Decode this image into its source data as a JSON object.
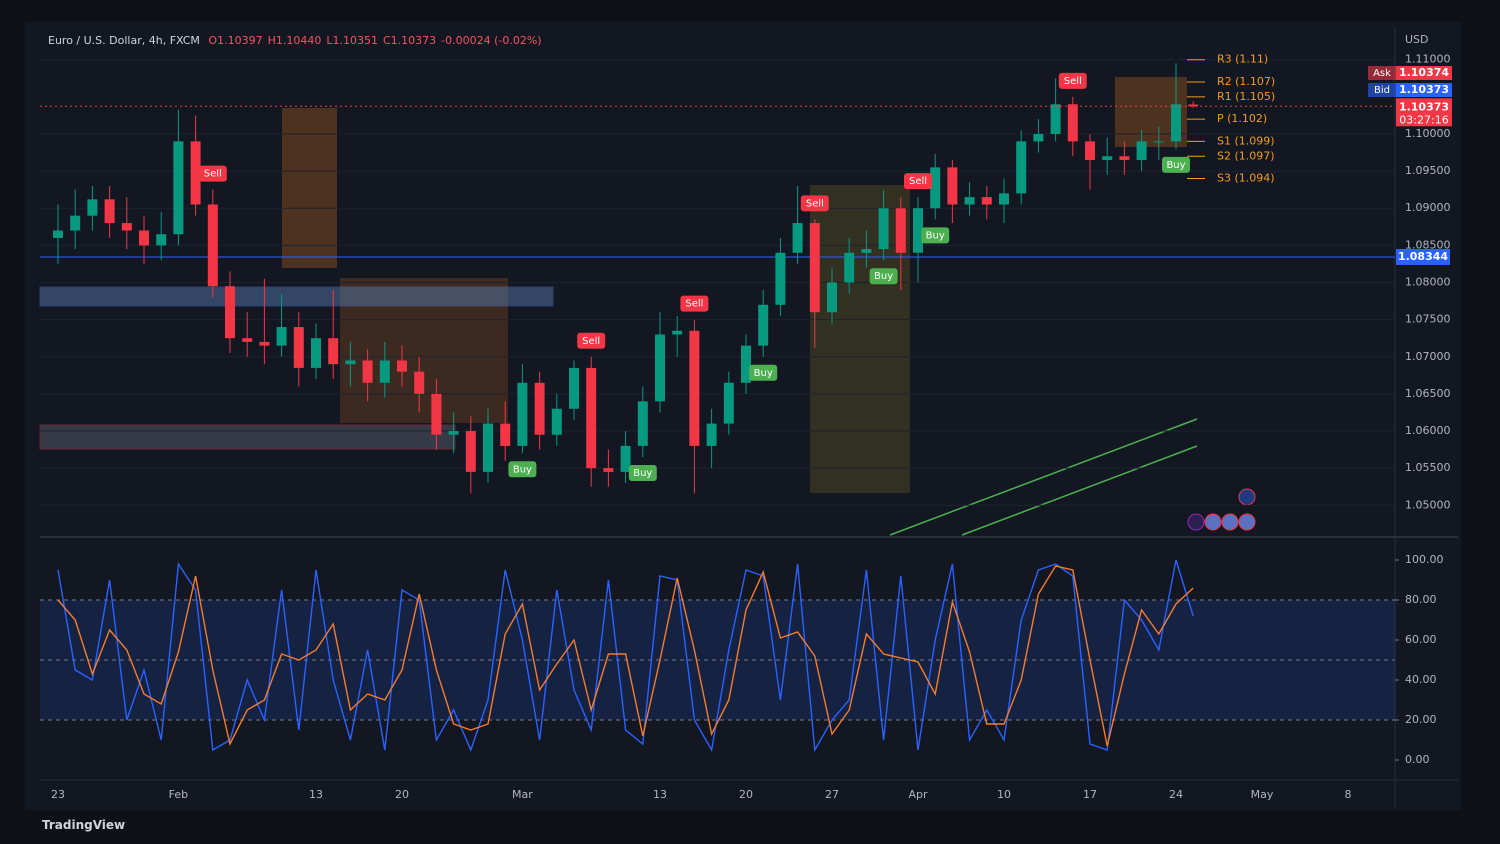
{
  "chart_data": [
    {
      "type": "candlestick",
      "title": "Euro / U.S. Dollar, 4h, FXCM",
      "readouts": [
        "O1.10397",
        "H1.10440",
        "L1.10351",
        "C1.10373",
        "-0.00024 (-0.02%)"
      ],
      "readout_color": "#f7525f",
      "currency": "USD",
      "categories": [
        "23",
        null,
        null,
        null,
        null,
        null,
        null,
        "Feb",
        null,
        null,
        null,
        null,
        null,
        null,
        null,
        "13",
        null,
        null,
        null,
        null,
        "20",
        null,
        null,
        null,
        null,
        null,
        null,
        "Mar",
        null,
        null,
        null,
        null,
        null,
        null,
        null,
        "13",
        null,
        null,
        null,
        null,
        "20",
        null,
        null,
        null,
        null,
        "27",
        null,
        null,
        null,
        null,
        "Apr",
        null,
        null,
        null,
        null,
        "10",
        null,
        null,
        null,
        null,
        "17",
        null,
        null,
        null,
        null,
        "24",
        null,
        null,
        null,
        null,
        "May",
        null,
        null,
        null,
        null,
        "8",
        null,
        null
      ],
      "open": [
        1.086,
        1.087,
        1.089,
        1.0912,
        1.088,
        1.087,
        1.085,
        1.0865,
        1.099,
        1.0905,
        1.0795,
        1.0725,
        1.072,
        1.0715,
        1.074,
        1.0685,
        1.0725,
        1.069,
        1.0695,
        1.0665,
        1.0695,
        1.068,
        1.065,
        1.0595,
        1.06,
        1.0545,
        1.061,
        1.058,
        1.0665,
        1.0595,
        1.063,
        1.0685,
        1.055,
        1.0545,
        1.058,
        1.064,
        1.073,
        1.0735,
        1.058,
        1.061,
        1.0665,
        1.0715,
        1.077,
        1.084,
        1.088,
        1.076,
        1.08,
        1.084,
        1.0845,
        1.09,
        1.084,
        1.09,
        1.0955,
        1.0905,
        1.0915,
        1.0905,
        1.092,
        1.099,
        1.1,
        1.104,
        1.099,
        1.0965,
        1.097,
        1.0965,
        1.099,
        1.099,
        1.10397,
        null,
        null,
        null,
        null,
        null,
        null,
        null,
        null,
        null,
        null,
        null
      ],
      "high": [
        1.0905,
        1.0925,
        1.093,
        1.093,
        1.0915,
        1.089,
        1.0895,
        1.1033,
        1.1025,
        1.0925,
        1.0815,
        1.076,
        1.0805,
        1.0785,
        1.076,
        1.0745,
        1.079,
        1.072,
        1.071,
        1.072,
        1.0715,
        1.07,
        1.067,
        1.0625,
        1.062,
        1.063,
        1.064,
        1.069,
        1.068,
        1.065,
        1.0695,
        1.07,
        1.0575,
        1.06,
        1.066,
        1.076,
        1.0755,
        1.075,
        1.063,
        1.068,
        1.073,
        1.079,
        1.086,
        1.093,
        1.0885,
        1.082,
        1.086,
        1.087,
        1.0925,
        1.0915,
        1.0915,
        1.0973,
        1.0965,
        1.0935,
        1.093,
        1.094,
        1.1005,
        1.102,
        1.1075,
        1.105,
        1.1,
        1.0995,
        1.099,
        1.1005,
        1.101,
        1.1095,
        1.1044,
        null,
        null,
        null,
        null,
        null,
        null,
        null,
        null,
        null,
        null,
        null
      ],
      "low": [
        1.0825,
        1.0845,
        1.087,
        1.086,
        1.0845,
        1.0825,
        1.083,
        1.085,
        1.089,
        1.078,
        1.0705,
        1.07,
        1.069,
        1.07,
        1.066,
        1.067,
        1.067,
        1.066,
        1.064,
        1.0645,
        1.066,
        1.0625,
        1.0575,
        1.057,
        1.0516,
        1.053,
        1.056,
        1.057,
        1.0575,
        1.058,
        1.0615,
        1.0525,
        1.0525,
        1.053,
        1.0565,
        1.0625,
        1.07,
        1.0516,
        1.055,
        1.0595,
        1.065,
        1.07,
        1.0755,
        1.0825,
        1.0712,
        1.0745,
        1.0785,
        1.082,
        1.083,
        1.079,
        1.08,
        1.0885,
        1.088,
        1.089,
        1.0885,
        1.088,
        1.0905,
        1.0975,
        1.099,
        1.097,
        1.0925,
        1.0945,
        1.0945,
        1.095,
        1.0965,
        1.098,
        1.10351,
        null,
        null,
        null,
        null,
        null,
        null,
        null,
        null,
        null,
        null,
        null
      ],
      "close": [
        1.087,
        1.089,
        1.0912,
        1.088,
        1.087,
        1.085,
        1.0865,
        1.099,
        1.0905,
        1.0795,
        1.0725,
        1.072,
        1.0715,
        1.074,
        1.0685,
        1.0725,
        1.069,
        1.0695,
        1.0665,
        1.0695,
        1.068,
        1.065,
        1.0595,
        1.06,
        1.0545,
        1.061,
        1.058,
        1.0665,
        1.0595,
        1.063,
        1.0685,
        1.055,
        1.0545,
        1.058,
        1.064,
        1.073,
        1.0735,
        1.058,
        1.061,
        1.0665,
        1.0715,
        1.077,
        1.084,
        1.088,
        1.076,
        1.08,
        1.084,
        1.0845,
        1.09,
        1.084,
        1.09,
        1.0955,
        1.0905,
        1.0915,
        1.0905,
        1.092,
        1.099,
        1.1,
        1.104,
        1.099,
        1.0965,
        1.097,
        1.0965,
        1.099,
        1.099,
        1.104,
        1.10373,
        null,
        null,
        null,
        null,
        null,
        null,
        null,
        null,
        null,
        null,
        null
      ],
      "up_color": "#089981",
      "down_color": "#f23645",
      "signals": [
        null,
        null,
        null,
        null,
        null,
        null,
        null,
        null,
        null,
        "Sell",
        null,
        null,
        null,
        null,
        null,
        null,
        null,
        null,
        null,
        null,
        null,
        null,
        null,
        null,
        null,
        null,
        null,
        "Buy",
        null,
        null,
        null,
        "Sell",
        null,
        null,
        "Buy",
        null,
        null,
        "Sell",
        null,
        null,
        null,
        "Buy",
        null,
        null,
        "Sell",
        null,
        null,
        null,
        "Buy",
        null,
        "Sell",
        "Buy",
        null,
        null,
        null,
        null,
        null,
        null,
        null,
        "Sell",
        null,
        null,
        null,
        null,
        null,
        "Buy",
        null,
        null,
        null,
        null,
        null,
        null,
        null,
        null,
        null,
        null,
        null,
        null
      ],
      "signal_styles": {
        "Sell": {
          "color": "#f23645",
          "position": "above"
        },
        "Buy": {
          "color": "#4caf50",
          "position": "below"
        }
      },
      "ylim": [
        1.046,
        1.114
      ],
      "yticks": [
        {
          "value": 1.11,
          "label": "1.11000"
        },
        {
          "value": 1.1,
          "label": "1.10000"
        },
        {
          "value": 1.095,
          "label": "1.09500"
        },
        {
          "value": 1.09,
          "label": "1.09000"
        },
        {
          "value": 1.085,
          "label": "1.08500"
        },
        {
          "value": 1.08,
          "label": "1.08000"
        },
        {
          "value": 1.075,
          "label": "1.07500"
        },
        {
          "value": 1.07,
          "label": "1.07000"
        },
        {
          "value": 1.065,
          "label": "1.06500"
        },
        {
          "value": 1.06,
          "label": "1.06000"
        },
        {
          "value": 1.055,
          "label": "1.05500"
        },
        {
          "value": 1.05,
          "label": "1.05000"
        }
      ],
      "pivots": [
        {
          "label": "R3 (1.11)",
          "value": 1.11
        },
        {
          "label": "R2 (1.107)",
          "value": 1.107
        },
        {
          "label": "R1 (1.105)",
          "value": 1.105
        },
        {
          "label": "P (1.102)",
          "value": 1.102
        },
        {
          "label": "S1 (1.099)",
          "value": 1.099
        },
        {
          "label": "S2 (1.097)",
          "value": 1.097
        },
        {
          "label": "S3 (1.094)",
          "value": 1.094
        }
      ],
      "pivot_color": "#f59c1a",
      "price_line": {
        "value": 1.08344,
        "color": "#2962ff"
      },
      "ask": {
        "label": "Ask",
        "value": 1.10374,
        "color": "#f23645"
      },
      "bid": {
        "label": "Bid",
        "value": 1.10373,
        "color": "#2962ff"
      },
      "last": {
        "value": 1.10373,
        "countdown": "03:27:16",
        "color": "#f23645"
      }
    },
    {
      "type": "line",
      "ylim": [
        -9,
        110
      ],
      "yticks": [
        {
          "value": 100,
          "label": "100.00"
        },
        {
          "value": 80,
          "label": "80.00"
        },
        {
          "value": 60,
          "label": "60.00"
        },
        {
          "value": 40,
          "label": "40.00"
        },
        {
          "value": 20,
          "label": "20.00"
        },
        {
          "value": 0,
          "label": "0.00"
        }
      ],
      "upper_band": 80,
      "middle_band": 50,
      "lower_band": 20,
      "series": [
        {
          "color": "#2962ff",
          "values": [
            95,
            45,
            40,
            90,
            20,
            45,
            10,
            98,
            85,
            5,
            10,
            40,
            20,
            85,
            15,
            95,
            40,
            10,
            55,
            5,
            85,
            80,
            10,
            25,
            5,
            30,
            95,
            60,
            10,
            85,
            35,
            15,
            90,
            15,
            8,
            92,
            90,
            20,
            5,
            55,
            95,
            92,
            30,
            98,
            5,
            20,
            30,
            95,
            10,
            92,
            5,
            60,
            98,
            10,
            25,
            10,
            70,
            95,
            98,
            92,
            8,
            5,
            80,
            70,
            55,
            100,
            72,
            null,
            null,
            null,
            null,
            null,
            null,
            null,
            null,
            null,
            null,
            null
          ]
        },
        {
          "color": "#f57c2e",
          "values": [
            80,
            70,
            43,
            65,
            55,
            33,
            28,
            54,
            92,
            45,
            8,
            25,
            30,
            53,
            50,
            55,
            68,
            25,
            33,
            30,
            45,
            83,
            45,
            18,
            15,
            18,
            63,
            78,
            35,
            48,
            60,
            25,
            53,
            53,
            12,
            50,
            91,
            55,
            13,
            30,
            75,
            94,
            61,
            64,
            52,
            13,
            25,
            63,
            53,
            51,
            49,
            33,
            79,
            54,
            18,
            18,
            40,
            83,
            97,
            95,
            50,
            7,
            43,
            75,
            63,
            78,
            86,
            null,
            null,
            null,
            null,
            null,
            null,
            null,
            null,
            null,
            null,
            null
          ]
        }
      ]
    }
  ],
  "branding": "TradingView"
}
